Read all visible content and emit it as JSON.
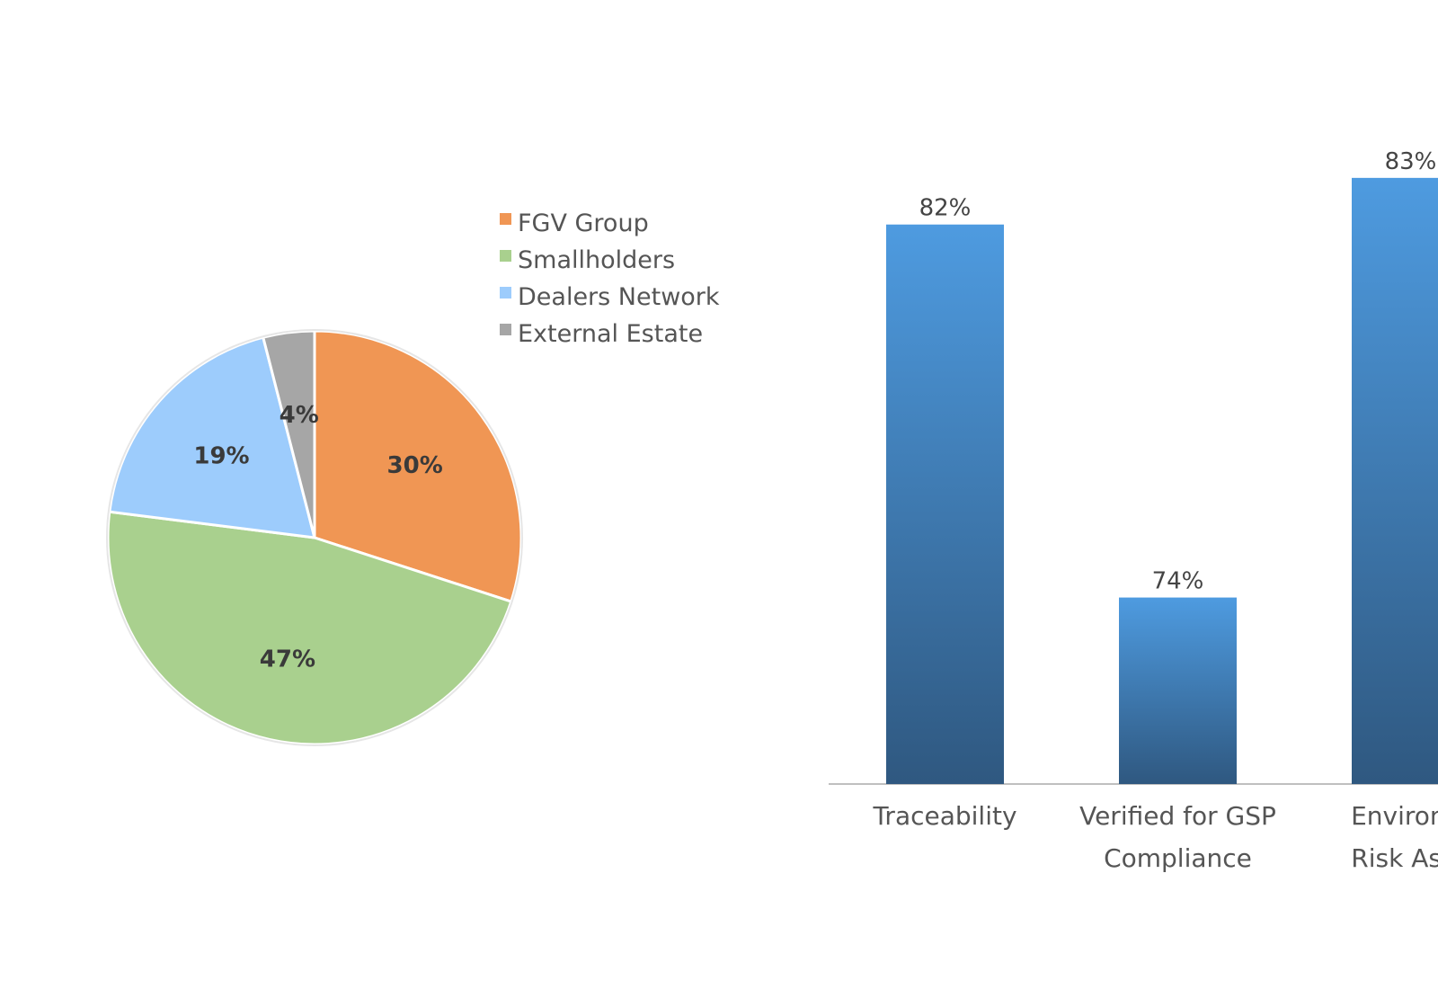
{
  "chart_data": [
    {
      "type": "pie",
      "slices": [
        {
          "label": "FGV Group",
          "value": 30,
          "display": "30%",
          "color": "#F09654"
        },
        {
          "label": "Smallholders",
          "value": 47,
          "display": "47%",
          "color": "#A9D08E"
        },
        {
          "label": "Dealers Network",
          "value": 19,
          "display": "19%",
          "color": "#9DCCFC"
        },
        {
          "label": "External Estate",
          "value": 4,
          "display": "4%",
          "color": "#A6A6A6"
        }
      ],
      "legend": "right"
    },
    {
      "type": "bar",
      "categories": [
        [
          "Traceability"
        ],
        [
          "Verified for GSP",
          "Compliance"
        ],
        [
          "Environm",
          "Risk Asse"
        ]
      ],
      "values": [
        82,
        74,
        83
      ],
      "value_labels": [
        "82%",
        "74%",
        "83%"
      ],
      "ylim": [
        70,
        84
      ],
      "bar_color_top": "#4E9BE0",
      "bar_color_bottom": "#2F5880"
    }
  ]
}
